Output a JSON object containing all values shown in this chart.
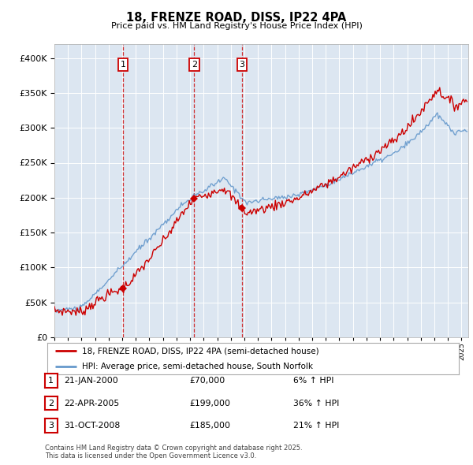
{
  "title": "18, FRENZE ROAD, DISS, IP22 4PA",
  "subtitle": "Price paid vs. HM Land Registry's House Price Index (HPI)",
  "legend_line1": "18, FRENZE ROAD, DISS, IP22 4PA (semi-detached house)",
  "legend_line2": "HPI: Average price, semi-detached house, South Norfolk",
  "footnote": "Contains HM Land Registry data © Crown copyright and database right 2025.\nThis data is licensed under the Open Government Licence v3.0.",
  "sales": [
    {
      "num": 1,
      "date": "21-JAN-2000",
      "price": 70000,
      "hpi_pct": "6% ↑ HPI",
      "x": 2000.05
    },
    {
      "num": 2,
      "date": "22-APR-2005",
      "price": 199000,
      "hpi_pct": "36% ↑ HPI",
      "x": 2005.3
    },
    {
      "num": 3,
      "date": "31-OCT-2008",
      "price": 185000,
      "hpi_pct": "21% ↑ HPI",
      "x": 2008.83
    }
  ],
  "sale_marker_color": "#cc0000",
  "line_red_color": "#cc0000",
  "line_blue_color": "#6699cc",
  "vline_color": "#cc0000",
  "background_color": "#ffffff",
  "plot_bg_color": "#dce6f1",
  "grid_color": "#ffffff",
  "ylim": [
    0,
    420000
  ],
  "xlim_start": 1995.0,
  "xlim_end": 2025.5,
  "figsize": [
    6.0,
    5.9
  ],
  "dpi": 100
}
